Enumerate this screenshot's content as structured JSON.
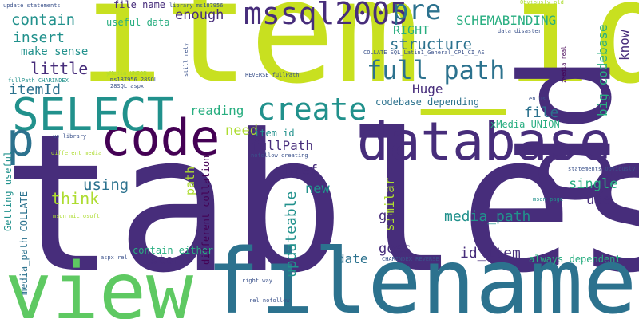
{
  "palette": {
    "dark_purple": "#440154",
    "indigo": "#472d7b",
    "blue": "#3b528b",
    "steel_blue": "#2c728e",
    "teal": "#21918c",
    "green_teal": "#28ae80",
    "green": "#5ec962",
    "lime": "#addc30",
    "yellow_green": "#c8e020"
  },
  "words": [
    {
      "text": "tables",
      "color": "indigo"
    },
    {
      "text": "item_id",
      "color": "yellow_green"
    },
    {
      "text": "filename",
      "color": "steel_blue"
    },
    {
      "text": "view",
      "color": "green"
    },
    {
      "text": "pp",
      "color": "indigo"
    },
    {
      "text": "database",
      "color": "indigo"
    },
    {
      "text": "code",
      "color": "dark_purple"
    },
    {
      "text": "SELECT",
      "color": "teal"
    },
    {
      "text": "p",
      "color": "steel_blue"
    },
    {
      "text": "create",
      "color": "teal"
    },
    {
      "text": "mssql2005",
      "color": "indigo"
    },
    {
      "text": "full path",
      "color": "steel_blue"
    },
    {
      "text": "pre",
      "color": "steel_blue"
    },
    {
      "text": "SCHEMABINDING",
      "color": "green_teal"
    },
    {
      "text": "contain",
      "color": "teal"
    },
    {
      "text": "enough",
      "color": "indigo"
    },
    {
      "text": "structure",
      "color": "steel_blue"
    },
    {
      "text": "RIGHT",
      "color": "green_teal"
    },
    {
      "text": "insert",
      "color": "teal"
    },
    {
      "text": "make sense",
      "color": "teal"
    },
    {
      "text": "little",
      "color": "indigo"
    },
    {
      "text": "itemId",
      "color": "steel_blue"
    },
    {
      "text": "Huge",
      "color": "indigo"
    },
    {
      "text": "reading",
      "color": "green_teal"
    },
    {
      "text": "file",
      "color": "steel_blue"
    },
    {
      "text": "codebase depending",
      "color": "steel_blue"
    },
    {
      "text": "need",
      "color": "lime"
    },
    {
      "text": "item id",
      "color": "teal"
    },
    {
      "text": "fullPath",
      "color": "indigo"
    },
    {
      "text": "href",
      "color": "indigo"
    },
    {
      "text": "using",
      "color": "steel_blue"
    },
    {
      "text": "think",
      "color": "lime"
    },
    {
      "text": "new",
      "color": "teal"
    },
    {
      "text": "similar",
      "color": "lime"
    },
    {
      "text": "single",
      "color": "green_teal"
    },
    {
      "text": "use",
      "color": "indigo"
    },
    {
      "text": "media_path",
      "color": "teal"
    },
    {
      "text": "go",
      "color": "indigo"
    },
    {
      "text": "updateable",
      "color": "teal"
    },
    {
      "text": "goes",
      "color": "indigo"
    },
    {
      "text": "date",
      "color": "steel_blue"
    },
    {
      "text": "id_item",
      "color": "indigo"
    },
    {
      "text": "store",
      "color": "indigo"
    },
    {
      "text": "contain either",
      "color": "green_teal"
    },
    {
      "text": "always dependent",
      "color": "green_teal"
    },
    {
      "text": "file name",
      "color": "indigo"
    },
    {
      "text": "useful data",
      "color": "green_teal"
    },
    {
      "text": "know",
      "color": "indigo"
    },
    {
      "text": "big codebase",
      "color": "green_teal"
    },
    {
      "text": "xMedia UNION",
      "color": "green_teal"
    },
    {
      "text": "path",
      "color": "lime"
    },
    {
      "text": "different collation",
      "color": "dark_purple"
    },
    {
      "text": "Getting useful",
      "color": "teal"
    },
    {
      "text": "media_path COLLATE",
      "color": "steel_blue"
    },
    {
      "text": "update statements",
      "color": "blue"
    },
    {
      "text": "library ms187956",
      "color": "blue"
    },
    {
      "text": "Obviously old",
      "color": "lime"
    },
    {
      "text": "data disaster",
      "color": "blue"
    },
    {
      "text": "COLLATE SQL_Latin1_General_CP1_CI_AS",
      "color": "blue"
    },
    {
      "text": "fullPath CHARINDEX",
      "color": "teal"
    },
    {
      "text": "yMedia UNION",
      "color": "lime"
    },
    {
      "text": "ms187956 28SQL",
      "color": "blue"
    },
    {
      "text": "28SQL aspx",
      "color": "blue"
    },
    {
      "text": "REVERSE fullPath",
      "color": "blue"
    },
    {
      "text": "still rely",
      "color": "blue"
    },
    {
      "text": "zMedia real",
      "color": "dark_purple"
    },
    {
      "text": "en us",
      "color": "blue"
    },
    {
      "text": "us library",
      "color": "blue"
    },
    {
      "text": "different media",
      "color": "lime"
    },
    {
      "text": "nofollow creating",
      "color": "blue"
    },
    {
      "text": "msdn microsoft",
      "color": "lime"
    },
    {
      "text": "msdn page",
      "color": "teal"
    },
    {
      "text": "statements Obviously",
      "color": "blue"
    },
    {
      "text": "aspx rel",
      "color": "blue"
    },
    {
      "text": "CHARINDEX REVERSE",
      "color": "blue"
    },
    {
      "text": "right way",
      "color": "blue"
    },
    {
      "text": "rel nofollow",
      "color": "blue"
    }
  ]
}
